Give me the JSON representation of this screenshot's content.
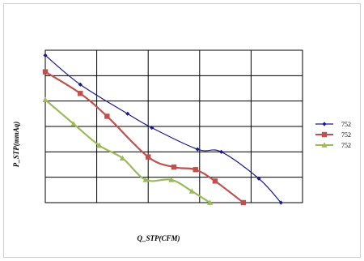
{
  "chart_data": {
    "type": "line",
    "title": "",
    "xlabel": "Q_STP(CFM)",
    "ylabel": "P_STP(mmAq)",
    "xlim": [
      0,
      5
    ],
    "ylim": [
      0,
      6
    ],
    "grid": true,
    "legend_position": "right",
    "series": [
      {
        "name": "752",
        "color": "#1a1a8c",
        "marker": "diamond",
        "x": [
          0.0,
          0.68,
          1.6,
          2.07,
          2.96,
          3.42,
          4.15,
          4.58
        ],
        "y": [
          5.8,
          4.65,
          3.5,
          2.95,
          2.1,
          2.0,
          0.95,
          0.0
        ]
      },
      {
        "name": "752",
        "color": "#c0504d",
        "marker": "square",
        "x": [
          0.0,
          0.68,
          1.2,
          2.0,
          2.5,
          2.92,
          3.3,
          3.85
        ],
        "y": [
          5.15,
          4.3,
          3.4,
          1.8,
          1.4,
          1.3,
          0.85,
          0.0
        ]
      },
      {
        "name": "752",
        "color": "#9bbb59",
        "marker": "triangle",
        "x": [
          0.0,
          0.55,
          1.05,
          1.5,
          1.95,
          2.45,
          2.85,
          3.2
        ],
        "y": [
          4.05,
          3.1,
          2.25,
          1.75,
          0.9,
          0.9,
          0.45,
          0.0
        ]
      }
    ]
  }
}
